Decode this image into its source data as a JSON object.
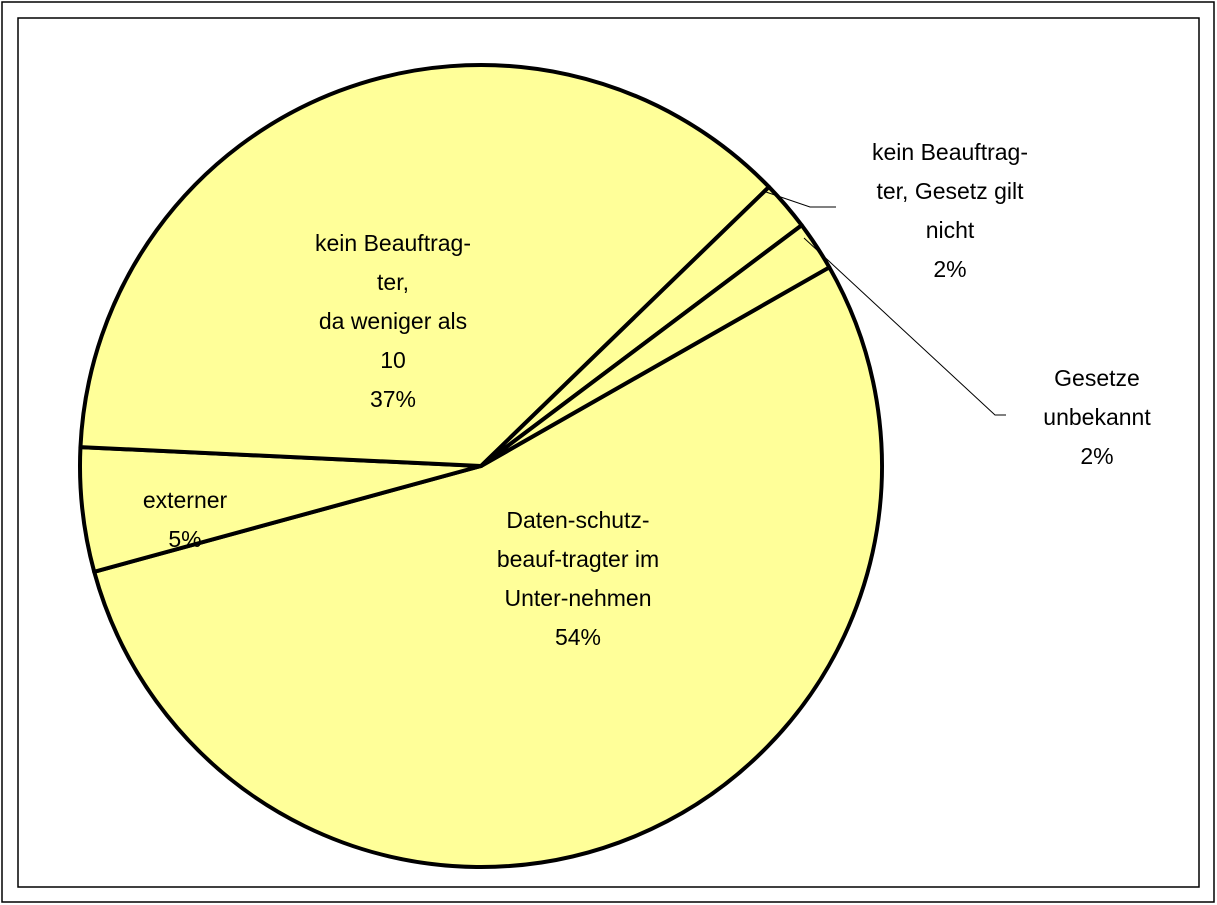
{
  "chart_data": {
    "type": "pie",
    "categories": [
      "Daten-schutz-\nbeauf-tragter im\nUnter-nehmen",
      "externer",
      "kein Beauftrag-\nter,\nda weniger als\n10",
      "kein Beauftrag-\nter, Gesetz gilt\nnicht",
      "Gesetze\nunbekannt"
    ],
    "values": [
      54,
      5,
      37,
      2,
      2
    ],
    "value_labels": [
      "54%",
      "5%",
      "37%",
      "2%",
      "2%"
    ],
    "color": "#ffff99"
  }
}
